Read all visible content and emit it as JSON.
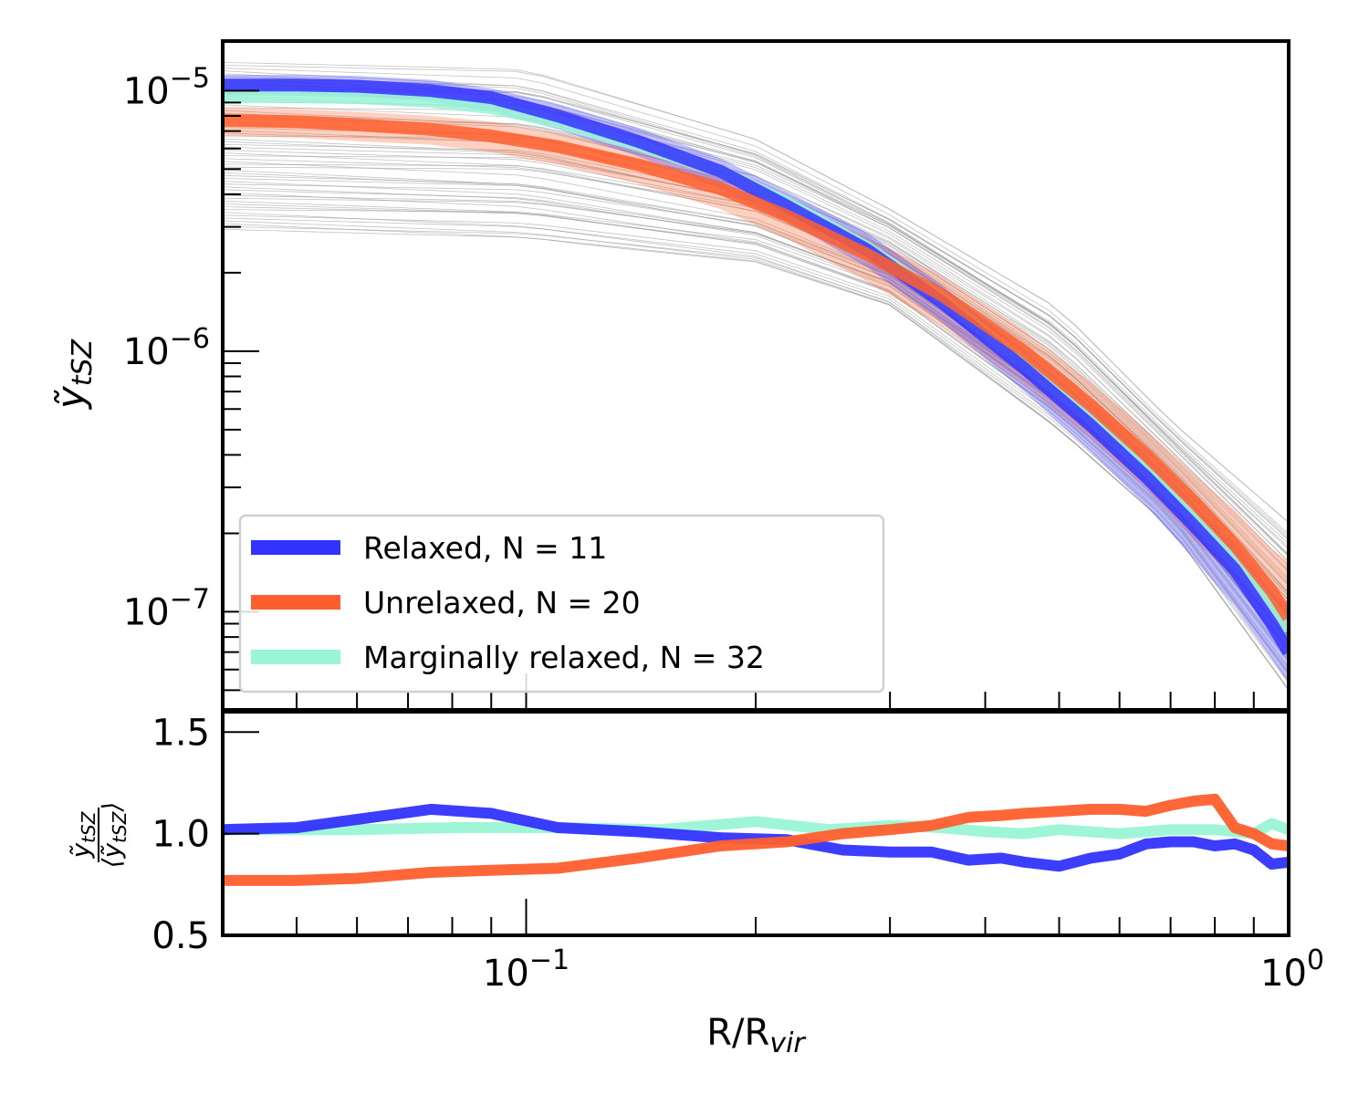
{
  "figure": {
    "xlabel": {
      "base": "R/R",
      "sub": "vir"
    },
    "top_ylabel": {
      "base": "ỹ",
      "sub": "tSZ"
    },
    "bottom_ylabel": {
      "num_base": "ỹ",
      "num_sub": "tSZ",
      "den_base": "⟨ỹ",
      "den_sub": "tSZ",
      "den_close": "⟩"
    }
  },
  "chart_data": [
    {
      "type": "line",
      "panel": "top",
      "xscale": "log",
      "yscale": "log",
      "xlim": [
        0.04,
        1.0
      ],
      "ylim": [
        4.2e-08,
        1.55e-05
      ],
      "grid": false,
      "legend_position": "lower-left",
      "x_ticks": [
        {
          "value": 0.1,
          "base": "10",
          "exp": "−1"
        },
        {
          "value": 1.0,
          "base": "10",
          "exp": "0"
        }
      ],
      "y_ticks": [
        {
          "value": 1e-05,
          "base": "10",
          "exp": "−5"
        },
        {
          "value": 1e-06,
          "base": "10",
          "exp": "−6"
        },
        {
          "value": 1e-07,
          "base": "10",
          "exp": "−7"
        }
      ],
      "x": [
        0.04,
        0.05,
        0.06,
        0.075,
        0.09,
        0.11,
        0.14,
        0.18,
        0.22,
        0.28,
        0.35,
        0.45,
        0.55,
        0.65,
        0.75,
        0.85,
        0.95,
        1.0
      ],
      "bands": [
        {
          "label": "Unrelaxed, N = 20",
          "color": "#FF5F2E",
          "lower": [
            6.7e-06,
            6.6e-06,
            6.4e-06,
            6.2e-06,
            5.8e-06,
            5.2e-06,
            4.4e-06,
            3.5e-06,
            2.7e-06,
            1.85e-06,
            1.25e-06,
            7.4e-07,
            4.6e-07,
            2.95e-07,
            1.9e-07,
            1.35e-07,
            9.2e-08,
            7.6e-08
          ],
          "upper": [
            8.6e-06,
            8.5e-06,
            8.3e-06,
            8e-06,
            7.6e-06,
            6.9e-06,
            5.9e-06,
            4.7e-06,
            3.7e-06,
            2.75e-06,
            1.95e-06,
            1.2e-06,
            7.6e-07,
            5e-07,
            3.4e-07,
            2.45e-07,
            1.75e-07,
            1.55e-07
          ]
        },
        {
          "label": "Relaxed, N = 11",
          "color": "#3333FF",
          "lower": [
            9.6e-06,
            9.6e-06,
            9.5e-06,
            9.1e-06,
            8.3e-06,
            7.1e-06,
            5.6e-06,
            4.2e-06,
            3.15e-06,
            2.1e-06,
            1.3e-06,
            7e-07,
            4.1e-07,
            2.55e-07,
            1.6e-07,
            1.05e-07,
            6.6e-08,
            5.3e-08
          ],
          "upper": [
            1.15e-05,
            1.15e-05,
            1.14e-05,
            1.1e-05,
            1.02e-05,
            8.9e-06,
            7.2e-06,
            5.5e-06,
            4.1e-06,
            2.85e-06,
            1.8e-06,
            1e-06,
            6.2e-07,
            3.95e-07,
            2.6e-07,
            1.8e-07,
            1.2e-07,
            1.05e-07
          ]
        }
      ],
      "series": [
        {
          "name": "Marginally relaxed, N = 32",
          "color": "#99F5D5",
          "values": [
            9.5e-06,
            9.5e-06,
            9.4e-06,
            9.1e-06,
            8.6e-06,
            7.6e-06,
            6.2e-06,
            4.9e-06,
            3.7e-06,
            2.5e-06,
            1.6e-06,
            9e-07,
            5.5e-07,
            3.5e-07,
            2.3e-07,
            1.55e-07,
            1.05e-07,
            8.5e-08
          ]
        },
        {
          "name": "Relaxed, N = 11",
          "color": "#3333FF",
          "values": [
            1.05e-05,
            1.05e-05,
            1.04e-05,
            1e-05,
            9.4e-06,
            8e-06,
            6.4e-06,
            4.9e-06,
            3.6e-06,
            2.45e-06,
            1.55e-06,
            8.6e-07,
            5.2e-07,
            3.3e-07,
            2.15e-07,
            1.45e-07,
            9e-08,
            7e-08
          ]
        },
        {
          "name": "Unrelaxed, N = 20",
          "color": "#FF5F2E",
          "values": [
            7.7e-06,
            7.6e-06,
            7.4e-06,
            7.1e-06,
            6.7e-06,
            6.1e-06,
            5.2e-06,
            4.2e-06,
            3.3e-06,
            2.35e-06,
            1.65e-06,
            1e-06,
            6.2e-07,
            4e-07,
            2.65e-07,
            1.8e-07,
            1.2e-07,
            9.5e-08
          ]
        }
      ],
      "background_lines": {
        "color": "#9a9a9a",
        "count": 60,
        "x": [
          0.04,
          0.1,
          0.2,
          0.3,
          0.5,
          0.7,
          1.0
        ],
        "envelope_lower": [
          2.9e-06,
          2.7e-06,
          2.2e-06,
          1.5e-06,
          5e-07,
          2.1e-07,
          5e-08
        ],
        "envelope_upper": [
          1.3e-05,
          1.2e-05,
          6.5e-06,
          3.5e-06,
          1.45e-06,
          5.4e-07,
          2.2e-07
        ]
      },
      "legend": [
        {
          "label": "Relaxed, N = 11",
          "color": "#3333FF"
        },
        {
          "label": "Unrelaxed, N = 20",
          "color": "#FF5F2E"
        },
        {
          "label": "Marginally relaxed, N = 32",
          "color": "#99F5D5"
        }
      ]
    },
    {
      "type": "line",
      "panel": "bottom",
      "xscale": "log",
      "yscale": "linear",
      "xlim": [
        0.04,
        1.0
      ],
      "ylim": [
        0.5,
        1.6
      ],
      "grid": false,
      "x_ticks": [
        {
          "value": 0.1,
          "base": "10",
          "exp": "−1"
        },
        {
          "value": 1.0,
          "base": "10",
          "exp": "0"
        }
      ],
      "y_ticks": [
        {
          "value": 0.5,
          "label": "0.5"
        },
        {
          "value": 1.0,
          "label": "1.0"
        },
        {
          "value": 1.5,
          "label": "1.5"
        }
      ],
      "series": [
        {
          "name": "Marginally relaxed, N = 32",
          "color": "#99F5D5",
          "x": [
            0.04,
            0.06,
            0.08,
            0.11,
            0.15,
            0.2,
            0.25,
            0.3,
            0.35,
            0.4,
            0.45,
            0.5,
            0.6,
            0.7,
            0.8,
            0.9,
            0.95,
            1.0
          ],
          "values": [
            1.02,
            1.02,
            1.03,
            1.03,
            1.02,
            1.06,
            1.02,
            1.04,
            1.03,
            1.01,
            1.0,
            1.02,
            1.0,
            1.02,
            1.02,
            1.0,
            1.05,
            1.02
          ]
        },
        {
          "name": "Relaxed, N = 11",
          "color": "#3333FF",
          "x": [
            0.04,
            0.05,
            0.06,
            0.075,
            0.09,
            0.11,
            0.14,
            0.18,
            0.22,
            0.26,
            0.3,
            0.34,
            0.38,
            0.42,
            0.45,
            0.5,
            0.55,
            0.6,
            0.65,
            0.7,
            0.75,
            0.8,
            0.85,
            0.9,
            0.95,
            1.0
          ],
          "values": [
            1.02,
            1.03,
            1.07,
            1.12,
            1.1,
            1.03,
            1.01,
            0.98,
            0.97,
            0.92,
            0.91,
            0.91,
            0.87,
            0.88,
            0.86,
            0.84,
            0.88,
            0.9,
            0.95,
            0.96,
            0.96,
            0.94,
            0.95,
            0.92,
            0.85,
            0.86
          ]
        },
        {
          "name": "Unrelaxed, N = 20",
          "color": "#FF5F2E",
          "x": [
            0.04,
            0.05,
            0.06,
            0.075,
            0.09,
            0.11,
            0.14,
            0.18,
            0.22,
            0.26,
            0.3,
            0.34,
            0.38,
            0.42,
            0.45,
            0.5,
            0.55,
            0.6,
            0.65,
            0.7,
            0.75,
            0.8,
            0.85,
            0.9,
            0.95,
            1.0
          ],
          "values": [
            0.77,
            0.77,
            0.78,
            0.81,
            0.82,
            0.83,
            0.88,
            0.94,
            0.96,
            1.0,
            1.02,
            1.04,
            1.08,
            1.09,
            1.1,
            1.11,
            1.12,
            1.12,
            1.11,
            1.14,
            1.16,
            1.17,
            1.03,
            1.0,
            0.95,
            0.94
          ]
        }
      ]
    }
  ]
}
